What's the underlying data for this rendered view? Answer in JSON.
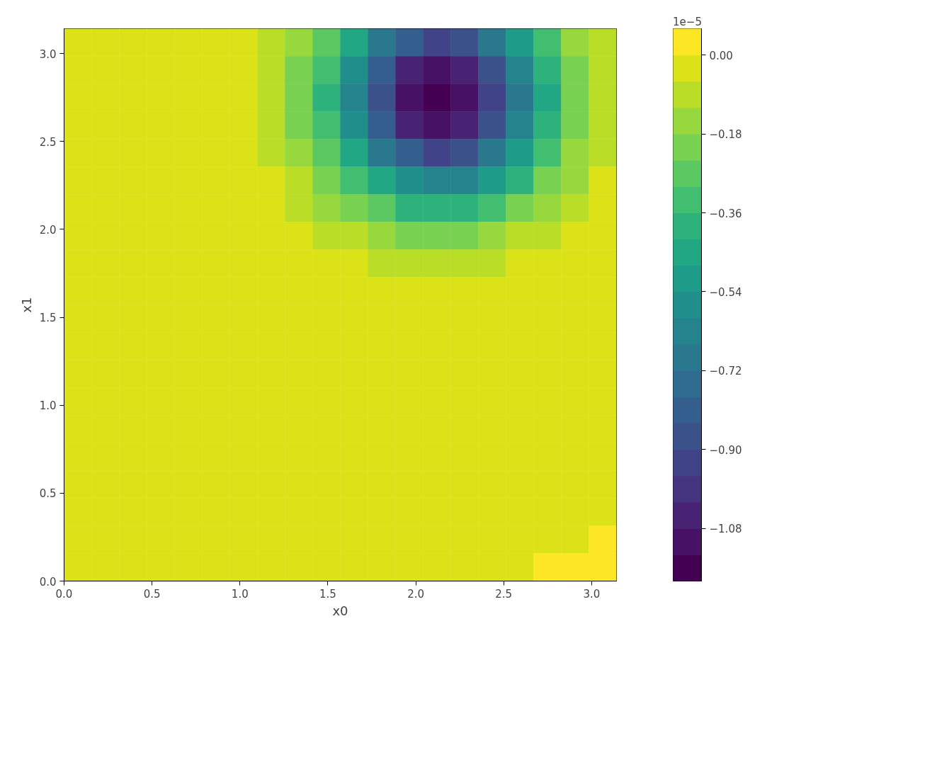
{
  "chart_data": {
    "type": "heatmap",
    "xlabel": "x0",
    "ylabel": "x1",
    "clabel": "1e−5",
    "xlim": [
      0,
      3.1416
    ],
    "ylim": [
      0,
      3.1416
    ],
    "xticks": [
      {
        "value": 0,
        "label": "0.0"
      },
      {
        "value": 0.5,
        "label": "0.5"
      },
      {
        "value": 1,
        "label": "1.0"
      },
      {
        "value": 1.5,
        "label": "1.5"
      },
      {
        "value": 2,
        "label": "2.0"
      },
      {
        "value": 2.5,
        "label": "2.5"
      },
      {
        "value": 3,
        "label": "3.0"
      }
    ],
    "yticks": [
      {
        "value": 0,
        "label": "0.0"
      },
      {
        "value": 0.5,
        "label": "0.5"
      },
      {
        "value": 1,
        "label": "1.0"
      },
      {
        "value": 1.5,
        "label": "1.5"
      },
      {
        "value": 2,
        "label": "2.0"
      },
      {
        "value": 2.5,
        "label": "2.5"
      },
      {
        "value": 3,
        "label": "3.0"
      }
    ],
    "clim": [
      -1.2,
      0.06
    ],
    "cticks": [
      {
        "value": 0,
        "label": "0.00"
      },
      {
        "value": -0.18,
        "label": "−0.18"
      },
      {
        "value": -0.36,
        "label": "−0.36"
      },
      {
        "value": -0.54,
        "label": "−0.54"
      },
      {
        "value": -0.72,
        "label": "−0.72"
      },
      {
        "value": -0.9,
        "label": "−0.90"
      },
      {
        "value": -1.08,
        "label": "−1.08"
      }
    ],
    "grid": false,
    "cells": [
      [
        -0.03,
        -0.03,
        -0.03,
        -0.03,
        -0.03,
        -0.03,
        -0.03,
        -0.09,
        -0.15,
        -0.27,
        -0.45,
        -0.69,
        -0.81,
        -0.93,
        -0.87,
        -0.69,
        -0.51,
        -0.33,
        -0.15,
        -0.09
      ],
      [
        -0.03,
        -0.03,
        -0.03,
        -0.03,
        -0.03,
        -0.03,
        -0.03,
        -0.09,
        -0.21,
        -0.33,
        -0.57,
        -0.81,
        -1.05,
        -1.11,
        -1.05,
        -0.87,
        -0.63,
        -0.39,
        -0.21,
        -0.09
      ],
      [
        -0.03,
        -0.03,
        -0.03,
        -0.03,
        -0.03,
        -0.03,
        -0.03,
        -0.09,
        -0.21,
        -0.39,
        -0.63,
        -0.87,
        -1.11,
        -1.17,
        -1.11,
        -0.93,
        -0.69,
        -0.45,
        -0.21,
        -0.09
      ],
      [
        -0.03,
        -0.03,
        -0.03,
        -0.03,
        -0.03,
        -0.03,
        -0.03,
        -0.09,
        -0.21,
        -0.33,
        -0.57,
        -0.81,
        -1.05,
        -1.11,
        -1.05,
        -0.87,
        -0.63,
        -0.39,
        -0.21,
        -0.09
      ],
      [
        -0.03,
        -0.03,
        -0.03,
        -0.03,
        -0.03,
        -0.03,
        -0.03,
        -0.09,
        -0.15,
        -0.27,
        -0.45,
        -0.69,
        -0.81,
        -0.93,
        -0.87,
        -0.69,
        -0.51,
        -0.33,
        -0.15,
        -0.09
      ],
      [
        -0.03,
        -0.03,
        -0.03,
        -0.03,
        -0.03,
        -0.03,
        -0.03,
        -0.03,
        -0.09,
        -0.21,
        -0.33,
        -0.45,
        -0.57,
        -0.63,
        -0.63,
        -0.51,
        -0.39,
        -0.21,
        -0.15,
        -0.03
      ],
      [
        -0.03,
        -0.03,
        -0.03,
        -0.03,
        -0.03,
        -0.03,
        -0.03,
        -0.03,
        -0.09,
        -0.15,
        -0.21,
        -0.27,
        -0.39,
        -0.39,
        -0.39,
        -0.33,
        -0.21,
        -0.15,
        -0.09,
        -0.03
      ],
      [
        -0.03,
        -0.03,
        -0.03,
        -0.03,
        -0.03,
        -0.03,
        -0.03,
        -0.03,
        -0.03,
        -0.09,
        -0.09,
        -0.15,
        -0.21,
        -0.21,
        -0.21,
        -0.15,
        -0.09,
        -0.09,
        -0.03,
        -0.03
      ],
      [
        -0.03,
        -0.03,
        -0.03,
        -0.03,
        -0.03,
        -0.03,
        -0.03,
        -0.03,
        -0.03,
        -0.03,
        -0.03,
        -0.09,
        -0.09,
        -0.09,
        -0.09,
        -0.09,
        -0.03,
        -0.03,
        -0.03,
        -0.03
      ],
      [
        -0.03,
        -0.03,
        -0.03,
        -0.03,
        -0.03,
        -0.03,
        -0.03,
        -0.03,
        -0.03,
        -0.03,
        -0.03,
        -0.03,
        -0.03,
        -0.03,
        -0.03,
        -0.03,
        -0.03,
        -0.03,
        -0.03,
        -0.03
      ],
      [
        -0.03,
        -0.03,
        -0.03,
        -0.03,
        -0.03,
        -0.03,
        -0.03,
        -0.03,
        -0.03,
        -0.03,
        -0.03,
        -0.03,
        -0.03,
        -0.03,
        -0.03,
        -0.03,
        -0.03,
        -0.03,
        -0.03,
        -0.03
      ],
      [
        -0.03,
        -0.03,
        -0.03,
        -0.03,
        -0.03,
        -0.03,
        -0.03,
        -0.03,
        -0.03,
        -0.03,
        -0.03,
        -0.03,
        -0.03,
        -0.03,
        -0.03,
        -0.03,
        -0.03,
        -0.03,
        -0.03,
        -0.03
      ],
      [
        -0.03,
        -0.03,
        -0.03,
        -0.03,
        -0.03,
        -0.03,
        -0.03,
        -0.03,
        -0.03,
        -0.03,
        -0.03,
        -0.03,
        -0.03,
        -0.03,
        -0.03,
        -0.03,
        -0.03,
        -0.03,
        -0.03,
        -0.03
      ],
      [
        -0.03,
        -0.03,
        -0.03,
        -0.03,
        -0.03,
        -0.03,
        -0.03,
        -0.03,
        -0.03,
        -0.03,
        -0.03,
        -0.03,
        -0.03,
        -0.03,
        -0.03,
        -0.03,
        -0.03,
        -0.03,
        -0.03,
        -0.03
      ],
      [
        -0.03,
        -0.03,
        -0.03,
        -0.03,
        -0.03,
        -0.03,
        -0.03,
        -0.03,
        -0.03,
        -0.03,
        -0.03,
        -0.03,
        -0.03,
        -0.03,
        -0.03,
        -0.03,
        -0.03,
        -0.03,
        -0.03,
        -0.03
      ],
      [
        -0.03,
        -0.03,
        -0.03,
        -0.03,
        -0.03,
        -0.03,
        -0.03,
        -0.03,
        -0.03,
        -0.03,
        -0.03,
        -0.03,
        -0.03,
        -0.03,
        -0.03,
        -0.03,
        -0.03,
        -0.03,
        -0.03,
        -0.03
      ],
      [
        -0.03,
        -0.03,
        -0.03,
        -0.03,
        -0.03,
        -0.03,
        -0.03,
        -0.03,
        -0.03,
        -0.03,
        -0.03,
        -0.03,
        -0.03,
        -0.03,
        -0.03,
        -0.03,
        -0.03,
        -0.03,
        -0.03,
        -0.03
      ],
      [
        -0.03,
        -0.03,
        -0.03,
        -0.03,
        -0.03,
        -0.03,
        -0.03,
        -0.03,
        -0.03,
        -0.03,
        -0.03,
        -0.03,
        -0.03,
        -0.03,
        -0.03,
        -0.03,
        -0.03,
        -0.03,
        -0.03,
        -0.03
      ],
      [
        -0.03,
        -0.03,
        -0.03,
        -0.03,
        -0.03,
        -0.03,
        -0.03,
        -0.03,
        -0.03,
        -0.03,
        -0.03,
        -0.03,
        -0.03,
        -0.03,
        -0.03,
        -0.03,
        -0.03,
        -0.03,
        -0.03,
        0.03
      ],
      [
        -0.03,
        -0.03,
        -0.03,
        -0.03,
        -0.03,
        -0.03,
        -0.03,
        -0.03,
        -0.03,
        -0.03,
        -0.03,
        -0.03,
        -0.03,
        -0.03,
        -0.03,
        -0.03,
        -0.03,
        0.03,
        0.03,
        0.03
      ]
    ]
  }
}
